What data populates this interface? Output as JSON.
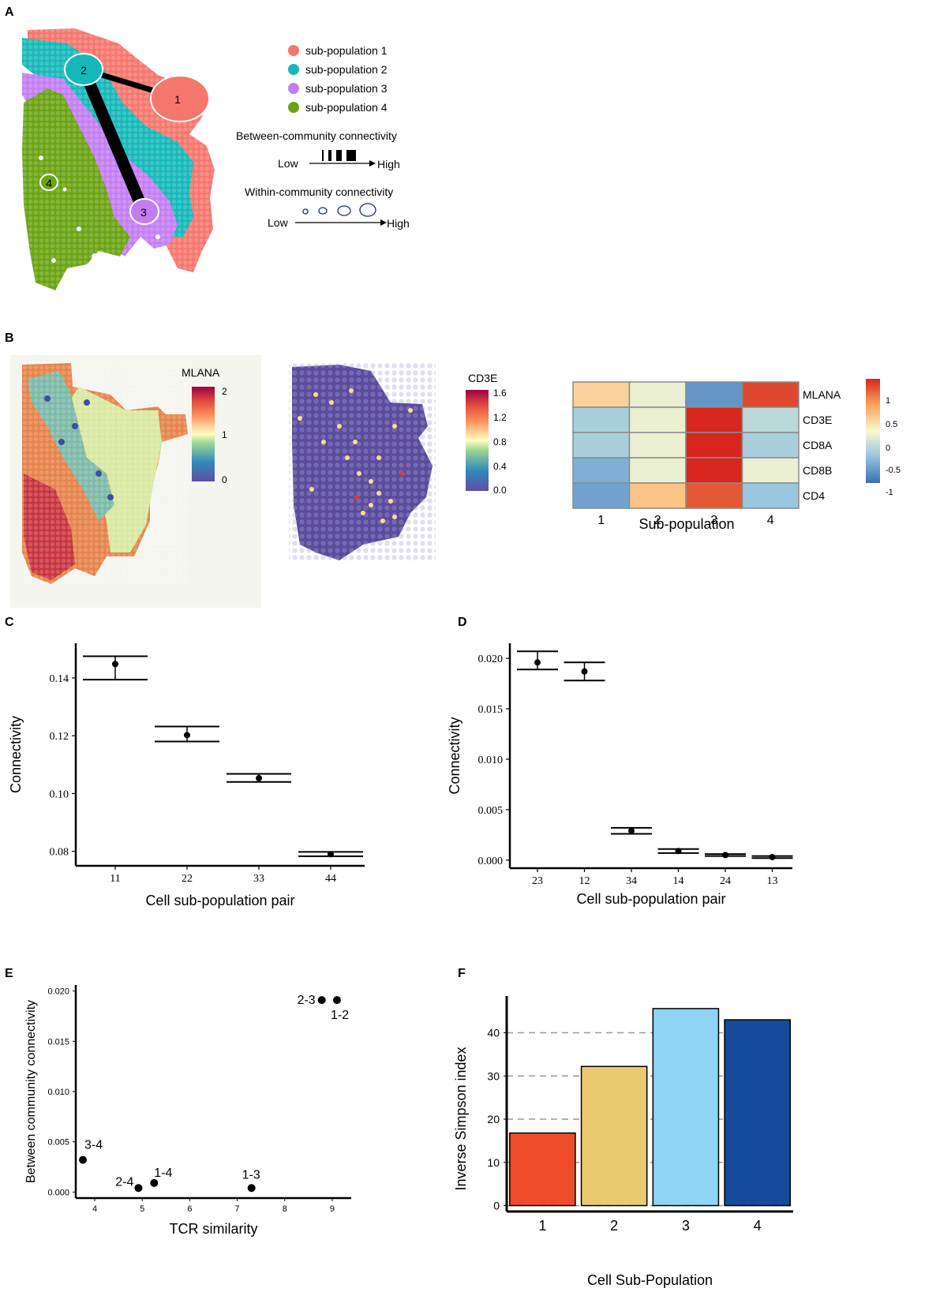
{
  "panel_letters": {
    "a": "A",
    "b": "B",
    "c": "C",
    "d": "D",
    "e": "E",
    "f": "F"
  },
  "colors": {
    "pop1": "#f5766d",
    "pop2": "#15b8b9",
    "pop3": "#c37df3",
    "pop4": "#6aa313",
    "bar1": "#ee4b2b",
    "bar2": "#ebc96f",
    "bar3": "#8fd3f5",
    "bar4": "#144b9b",
    "tissue_bg": "#5a4a9c"
  },
  "panel_a": {
    "legend": [
      {
        "label": "sub-population 1",
        "color": "#f5766d"
      },
      {
        "label": "sub-population 2",
        "color": "#15b8b9"
      },
      {
        "label": "sub-population 3",
        "color": "#c37df3"
      },
      {
        "label": "sub-population 4",
        "color": "#6aa313"
      }
    ],
    "nodes": [
      "1",
      "2",
      "3",
      "4"
    ],
    "between_title": "Between-community connectivity",
    "within_title": "Within-community connectivity",
    "low": "Low",
    "high": "High"
  },
  "panel_b": {
    "mlana_title": "MLANA",
    "mlana_ticks": [
      "2",
      "1",
      "0"
    ],
    "cd3e_title": "CD3E",
    "cd3e_ticks": [
      "1.6",
      "1.2",
      "0.8",
      "0.4",
      "0.0"
    ],
    "heatmap": {
      "genes": [
        "MLANA",
        "CD3E",
        "CD8A",
        "CD8B",
        "CD4"
      ],
      "columns": [
        "1",
        "2",
        "3",
        "4"
      ],
      "values": [
        [
          0.3,
          -0.1,
          -1.0,
          1.2
        ],
        [
          -0.5,
          -0.1,
          1.4,
          -0.4
        ],
        [
          -0.5,
          -0.1,
          1.4,
          -0.5
        ],
        [
          -0.8,
          -0.1,
          1.4,
          -0.1
        ],
        [
          -0.9,
          0.4,
          1.1,
          -0.6
        ]
      ],
      "xlabel": "Sub-population",
      "scale_ticks": [
        "1",
        "0.5",
        "0",
        "-0.5",
        "-1"
      ]
    }
  },
  "chart_data": [
    {
      "panel": "C",
      "type": "scatter",
      "categories": [
        "11",
        "22",
        "33",
        "44"
      ],
      "values": [
        0.1448,
        0.1202,
        0.1053,
        0.079
      ],
      "lower": [
        0.1394,
        0.118,
        0.104,
        0.0783
      ],
      "upper": [
        0.1475,
        0.1232,
        0.1068,
        0.0798
      ],
      "xlabel": "Cell sub-population pair",
      "ylabel": "Connectivity",
      "yticks": [
        "0.08",
        "0.10",
        "0.12",
        "0.14"
      ],
      "ylim": [
        0.075,
        0.152
      ]
    },
    {
      "panel": "D",
      "type": "scatter",
      "categories": [
        "23",
        "12",
        "34",
        "14",
        "24",
        "13"
      ],
      "values": [
        0.0196,
        0.0187,
        0.0029,
        0.0009,
        0.0005,
        0.0003
      ],
      "lower": [
        0.0189,
        0.0178,
        0.0026,
        0.0007,
        0.0004,
        0.0002
      ],
      "upper": [
        0.0207,
        0.0196,
        0.0032,
        0.0011,
        0.0006,
        0.0004
      ],
      "xlabel": "Cell sub-population pair",
      "ylabel": "Connectivity",
      "yticks": [
        "0.000",
        "0.005",
        "0.010",
        "0.015",
        "0.020"
      ],
      "ylim": [
        -0.0008,
        0.0215
      ]
    },
    {
      "panel": "E",
      "type": "scatter",
      "points": [
        {
          "label": "3-4",
          "x": 3.75,
          "y": 0.0032
        },
        {
          "label": "2-4",
          "x": 4.92,
          "y": 0.0004
        },
        {
          "label": "1-4",
          "x": 5.25,
          "y": 0.0009
        },
        {
          "label": "1-3",
          "x": 7.3,
          "y": 0.0004
        },
        {
          "label": "2-3",
          "x": 8.78,
          "y": 0.0191
        },
        {
          "label": "1-2",
          "x": 9.1,
          "y": 0.0191
        }
      ],
      "xlabel": "TCR similarity",
      "ylabel": "Between community connectivity",
      "xticks": [
        "4",
        "5",
        "6",
        "7",
        "8",
        "9"
      ],
      "yticks": [
        "0.000",
        "0.005",
        "0.010",
        "0.015",
        "0.020"
      ],
      "xlim": [
        3.6,
        9.4
      ],
      "ylim": [
        -0.0006,
        0.0206
      ]
    },
    {
      "panel": "F",
      "type": "bar",
      "categories": [
        "1",
        "2",
        "3",
        "4"
      ],
      "values": [
        16.8,
        32.2,
        45.6,
        43.0
      ],
      "xlabel": "Cell Sub-Population",
      "ylabel": "Inverse Simpson index",
      "yticks": [
        "0",
        "10",
        "20",
        "30",
        "40"
      ],
      "ylim": [
        -1,
        48.5
      ]
    }
  ]
}
